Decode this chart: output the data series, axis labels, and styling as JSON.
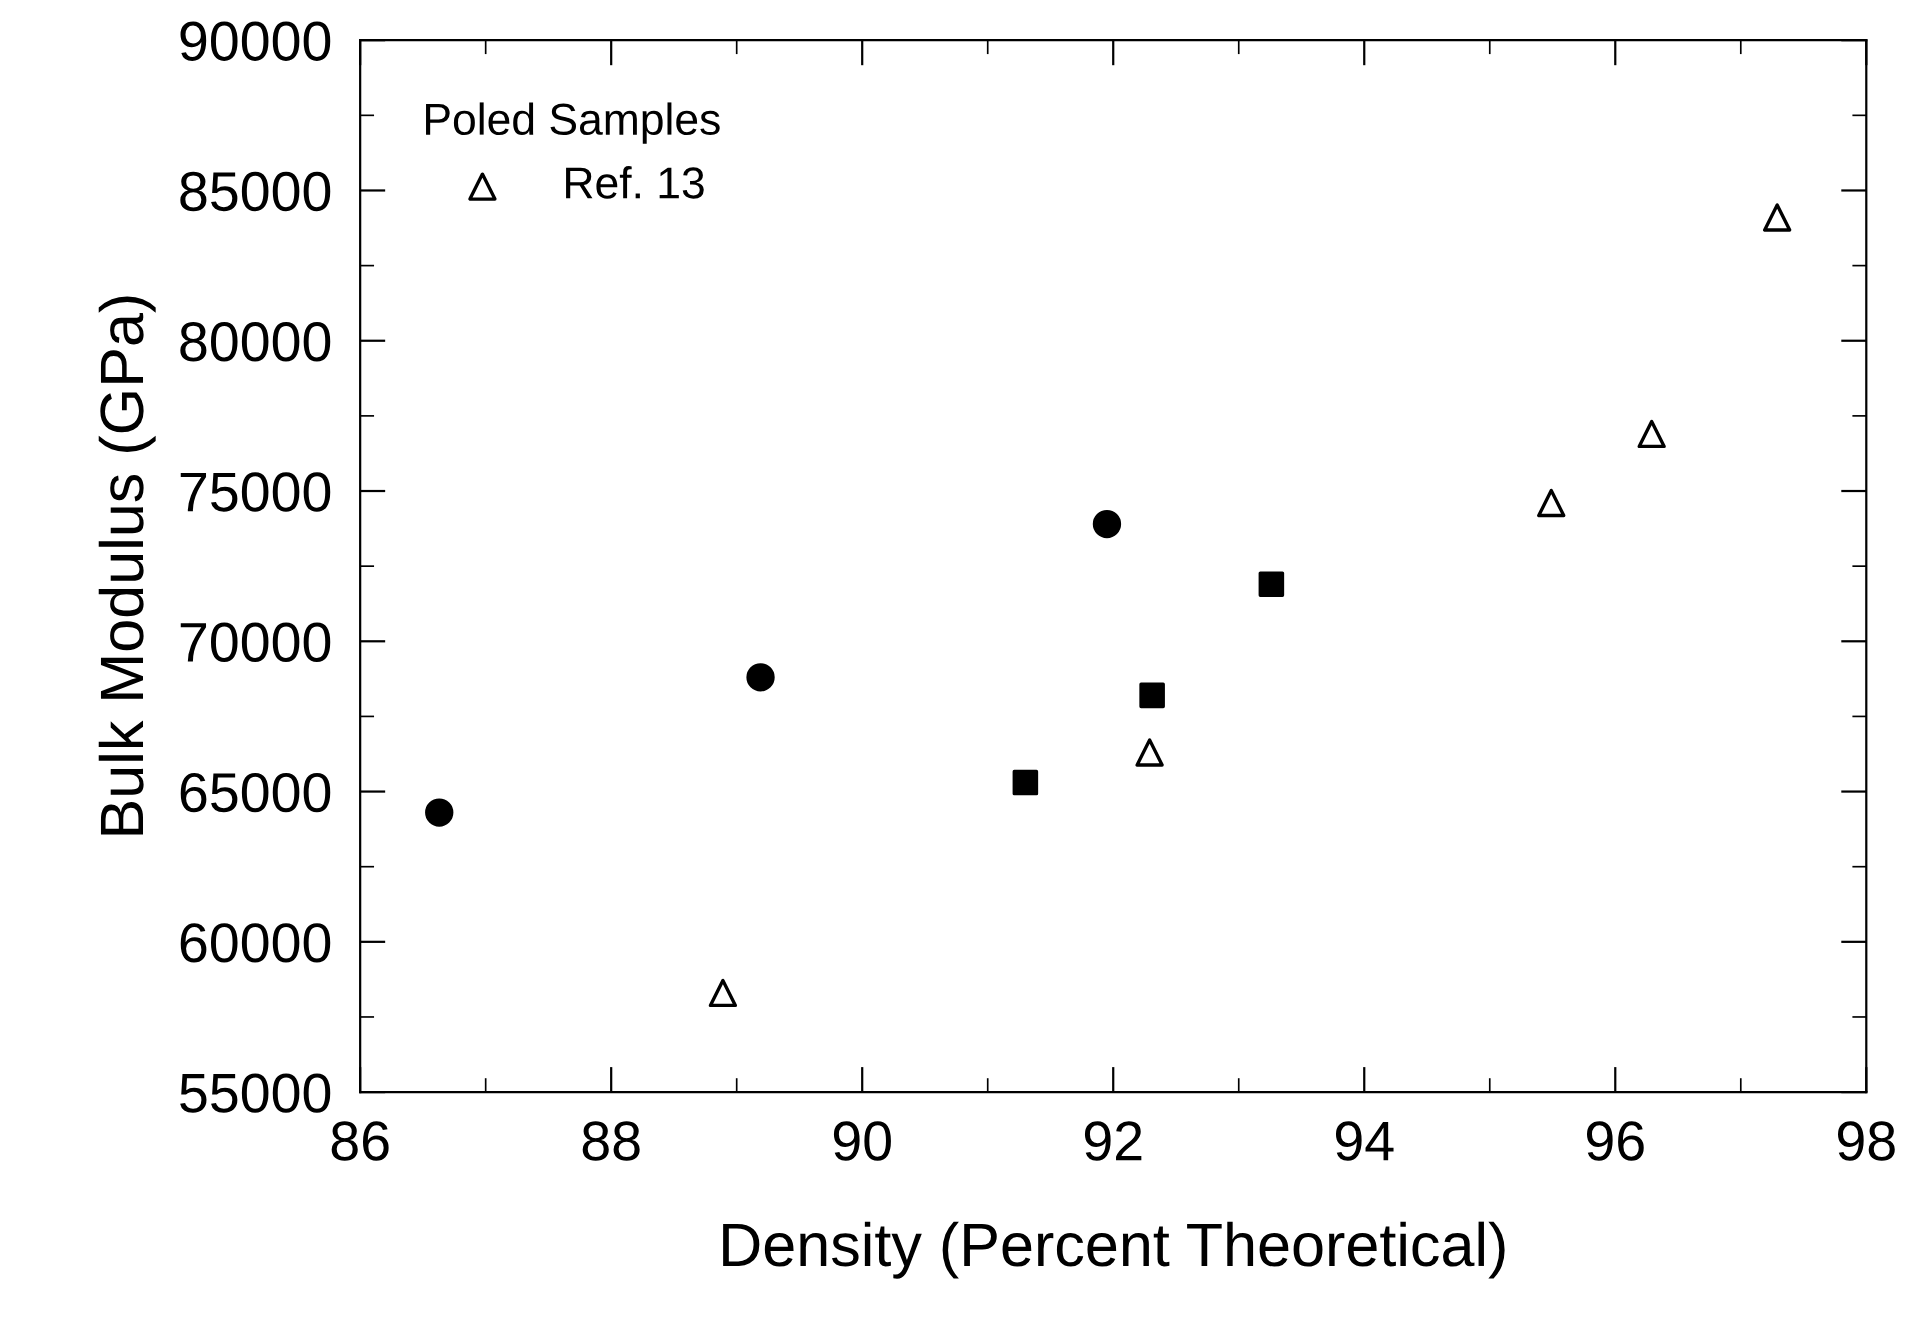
{
  "chart_data": {
    "type": "scatter",
    "xlabel": "Density (Percent Theoretical)",
    "ylabel": "Bulk Modulus (GPa)",
    "legend_title": "Poled Samples",
    "legend": "top left",
    "xlim": [
      86,
      98
    ],
    "xticks": [
      86,
      88,
      90,
      92,
      94,
      96,
      98
    ],
    "ylim": [
      55000,
      90000
    ],
    "yticks": [
      55000,
      60000,
      65000,
      70000,
      75000,
      80000,
      85000,
      90000
    ],
    "grid": false,
    "series": [
      {
        "color": "#000000",
        "marker": "circle",
        "x": [
          86.63,
          89.19,
          91.95
        ],
        "values": [
          64300,
          68800,
          73900
        ]
      },
      {
        "color": "#000000",
        "marker": "square",
        "x": [
          91.3,
          92.31,
          93.26
        ],
        "values": [
          65300,
          68200,
          71900
        ]
      },
      {
        "name": "Ref. 13",
        "color": "#000000",
        "marker": "triangle",
        "x": [
          88.89,
          92.29,
          95.49,
          96.29,
          97.29
        ],
        "values": [
          58300,
          66300,
          74600,
          76900,
          84100
        ]
      }
    ]
  }
}
